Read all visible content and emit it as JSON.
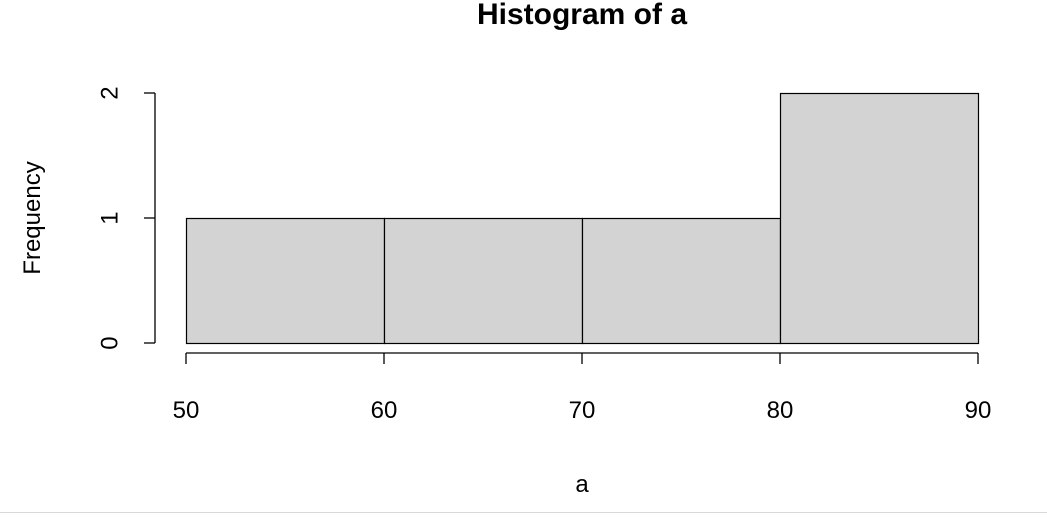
{
  "chart_data": {
    "type": "bar",
    "title": "Histogram of a",
    "xlabel": "a",
    "ylabel": "Frequency",
    "bins": [
      {
        "from": 50,
        "to": 60,
        "count": 1
      },
      {
        "from": 60,
        "to": 70,
        "count": 1
      },
      {
        "from": 70,
        "to": 80,
        "count": 1
      },
      {
        "from": 80,
        "to": 90,
        "count": 2
      }
    ],
    "xlim": [
      50,
      90
    ],
    "ylim": [
      0,
      2
    ],
    "xticks": [
      50,
      60,
      70,
      80,
      90
    ],
    "yticks": [
      0,
      1,
      2
    ],
    "grid": false,
    "colors": {
      "bar_fill": "#d3d3d3",
      "bar_stroke": "#000000",
      "axis": "#000000",
      "text": "#000000"
    }
  }
}
